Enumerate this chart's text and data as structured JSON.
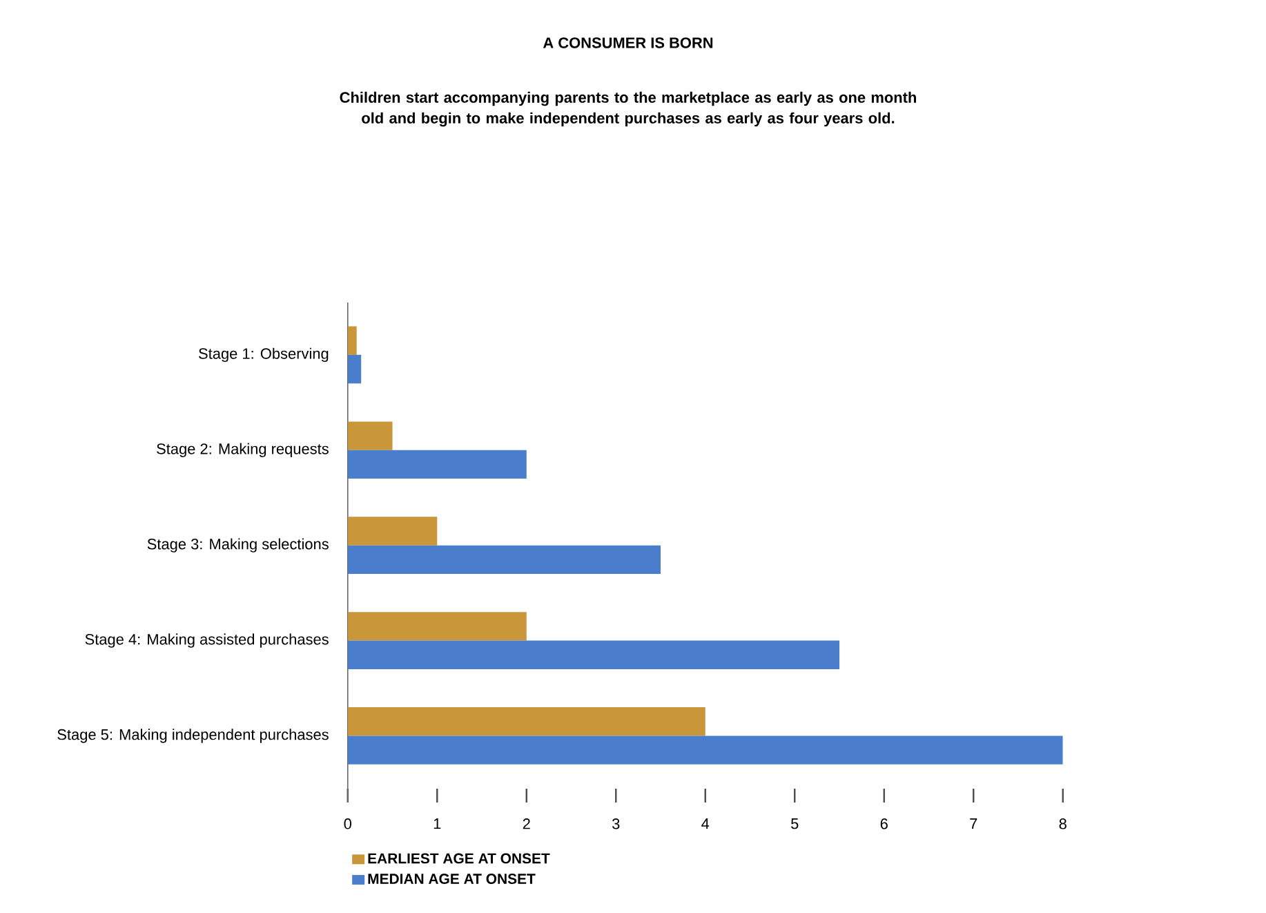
{
  "chart_data": {
    "type": "bar",
    "orientation": "horizontal",
    "title": "A CONSUMER IS BORN",
    "subtitle": "Children start accompanying parents to the marketplace as early as one month old and begin to make independent purchases as early as four years old.",
    "categories": [
      "Stage 1: Observing",
      "Stage 2: Making requests",
      "Stage 3: Making selections",
      "Stage 4: Making assisted purchases",
      "Stage 5: Making independent purchases"
    ],
    "series": [
      {
        "name": "EARLIEST AGE AT ONSET",
        "color": "#c9973a",
        "values": [
          0.1,
          0.5,
          1,
          2,
          4
        ]
      },
      {
        "name": "MEDIAN AGE AT ONSET",
        "color": "#4a7dcb",
        "values": [
          0.15,
          2,
          3.5,
          5.5,
          8
        ]
      }
    ],
    "xlim": [
      0,
      8
    ],
    "xticks": [
      0,
      1,
      2,
      3,
      4,
      5,
      6,
      7,
      8
    ],
    "grid": false,
    "legend": "bottom"
  }
}
